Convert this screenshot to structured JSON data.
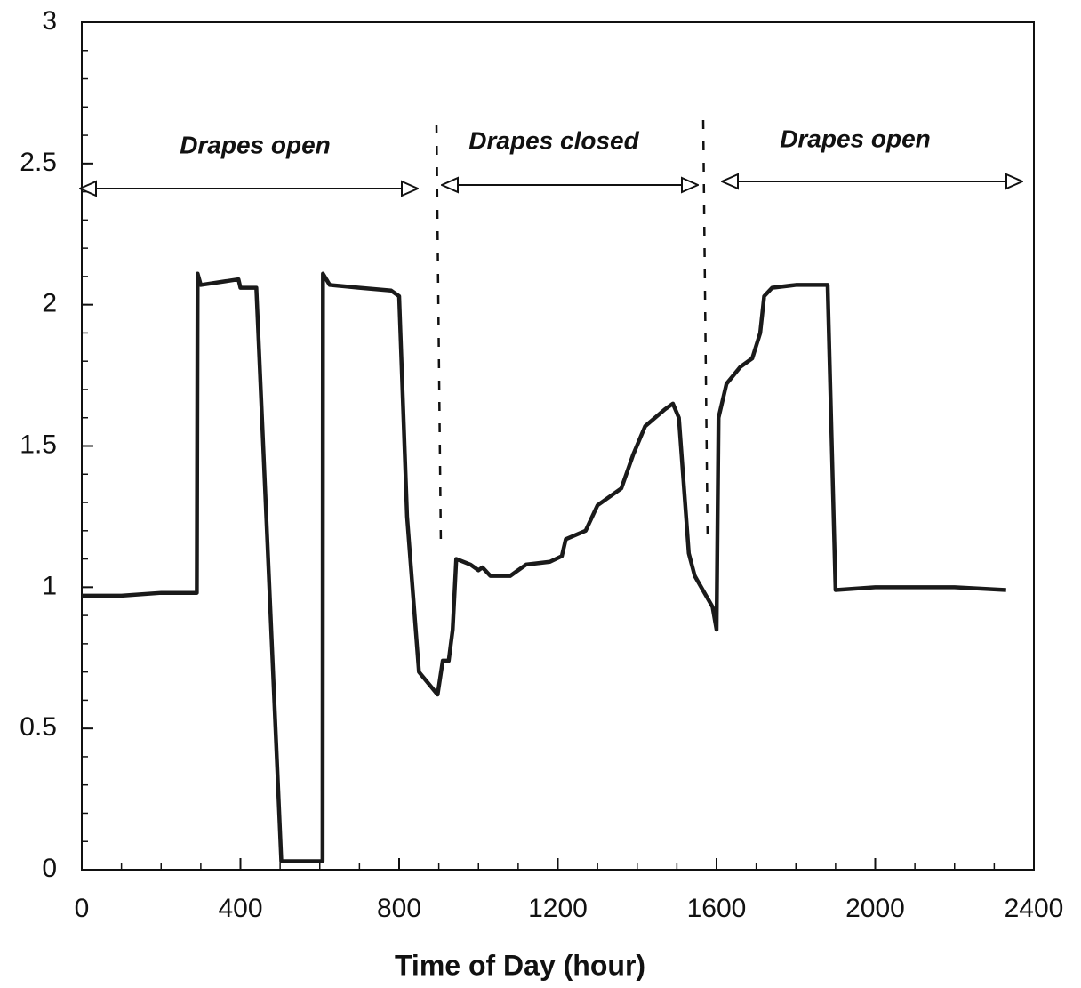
{
  "chart_data": {
    "type": "line",
    "xlabel": "Time of Day (hour)",
    "annotations": [
      "Drapes open",
      "Drapes closed",
      "Drapes open"
    ],
    "x": [
      0,
      100,
      200,
      290,
      292,
      300,
      395,
      400,
      420,
      440,
      503,
      607,
      608,
      625,
      700,
      780,
      800,
      820,
      850,
      897,
      910,
      925,
      935,
      944,
      980,
      1000,
      1010,
      1030,
      1080,
      1100,
      1120,
      1180,
      1210,
      1220,
      1270,
      1300,
      1360,
      1390,
      1420,
      1470,
      1490,
      1505,
      1530,
      1545,
      1590,
      1600,
      1605,
      1625,
      1660,
      1690,
      1710,
      1720,
      1740,
      1800,
      1880,
      1900,
      2000,
      2100,
      2200,
      2330
    ],
    "values": [
      0.97,
      0.97,
      0.98,
      0.98,
      2.11,
      2.07,
      2.09,
      2.06,
      2.06,
      2.06,
      0.03,
      0.03,
      2.11,
      2.07,
      2.06,
      2.05,
      2.03,
      1.25,
      0.7,
      0.62,
      0.74,
      0.74,
      0.85,
      1.1,
      1.08,
      1.06,
      1.07,
      1.04,
      1.04,
      1.06,
      1.08,
      1.09,
      1.11,
      1.17,
      1.2,
      1.29,
      1.35,
      1.47,
      1.57,
      1.63,
      1.65,
      1.6,
      1.12,
      1.04,
      0.93,
      0.85,
      1.6,
      1.72,
      1.78,
      1.81,
      1.9,
      2.03,
      2.06,
      2.07,
      2.07,
      0.99,
      1.0,
      1.0,
      1.0,
      0.99
    ],
    "color": "#1a1a1a",
    "xlim": [
      0,
      2400
    ],
    "ylim": [
      0,
      3
    ],
    "xticks": [
      0,
      400,
      800,
      1200,
      1600,
      2000,
      2400
    ],
    "yticks": [
      0,
      0.5,
      1,
      1.5,
      2,
      2.5,
      3
    ]
  }
}
